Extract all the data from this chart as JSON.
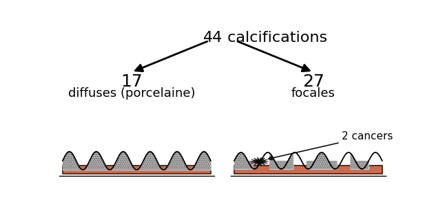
{
  "title_number": "44",
  "title_text": " calcifications",
  "left_number": "17",
  "left_label": "diffuses (porcelaine)",
  "right_number": "27",
  "right_label": "focales",
  "cancer_label": "2 cancers",
  "bg_color": "#ffffff",
  "rect_color": "#cd6b4b",
  "rect_edge_color": "#3a1a0a",
  "wave_color": "#000000",
  "title_fontsize": 16,
  "number_fontsize": 18,
  "label_fontsize": 13,
  "cancer_fontsize": 11
}
